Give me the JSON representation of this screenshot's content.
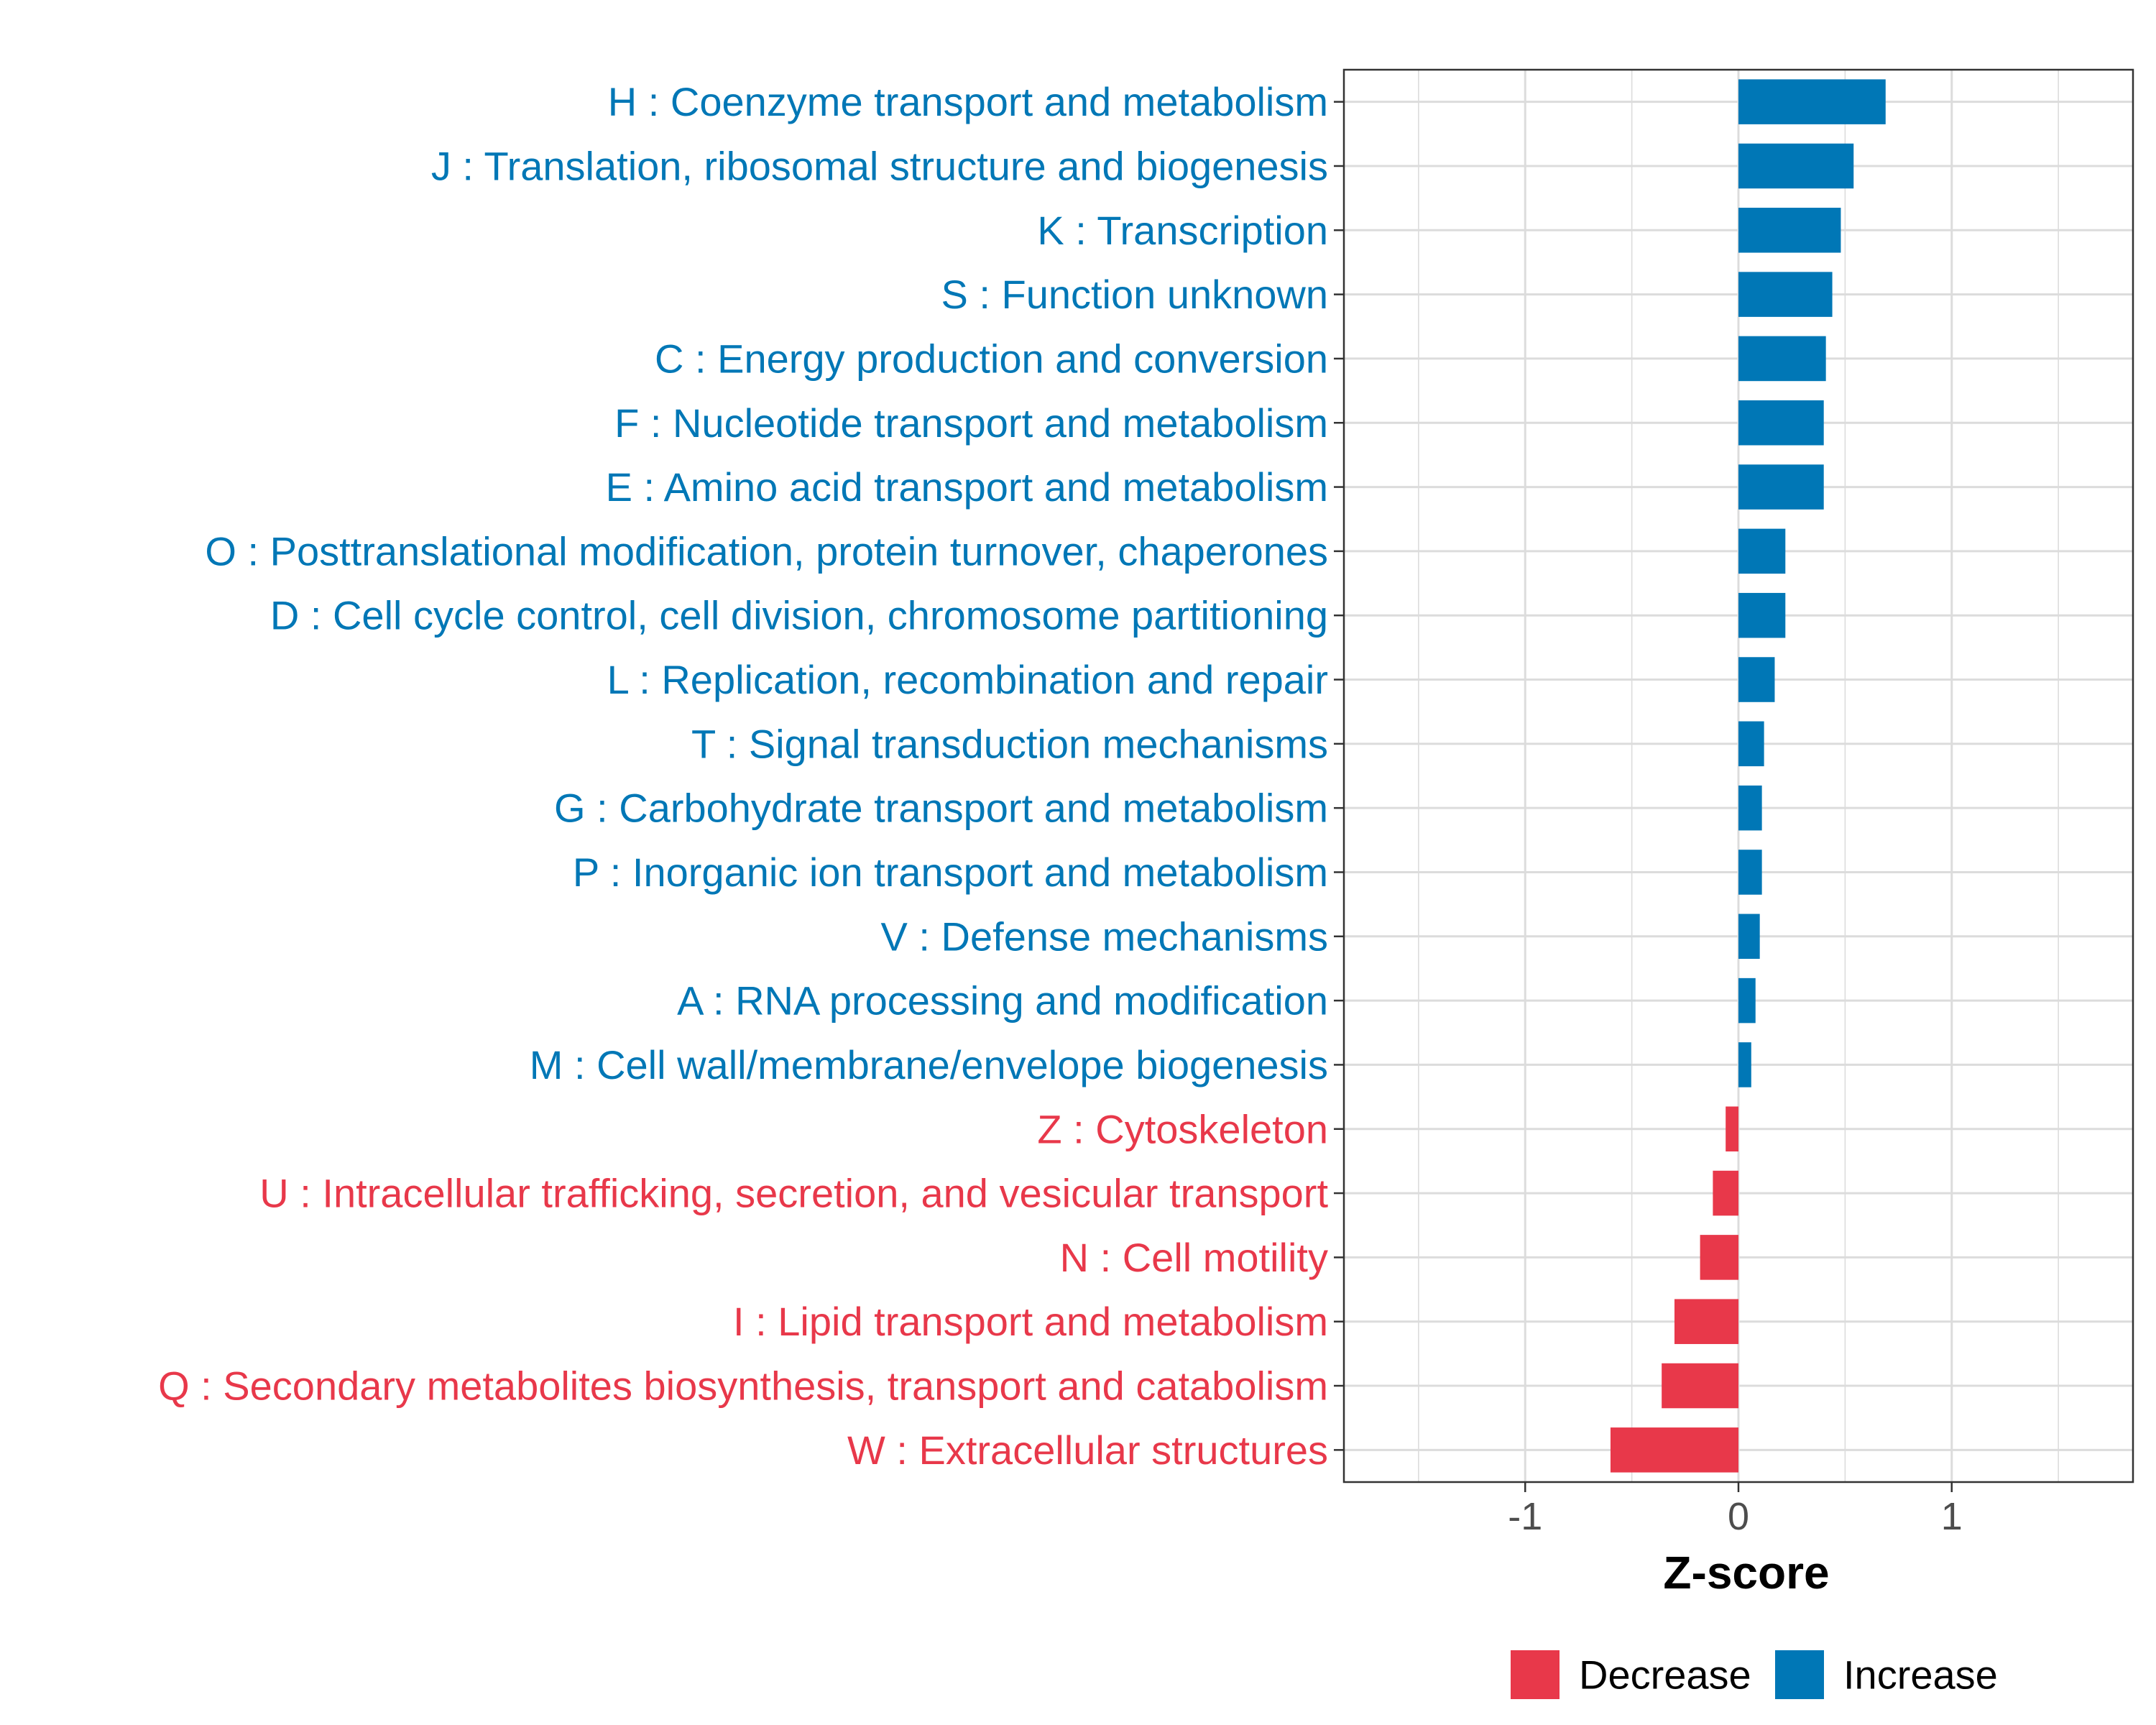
{
  "chart_data": {
    "type": "bar",
    "orientation": "horizontal",
    "title": "",
    "xlabel": "Z-score",
    "ylabel": "",
    "xlim": [
      -1.85,
      1.85
    ],
    "xticks": [
      -1,
      0,
      1
    ],
    "xtick_labels": [
      "-1",
      "0",
      "1"
    ],
    "grid": true,
    "legend_position": "bottom",
    "colors": {
      "Decrease": "#e8384a",
      "Increase": "#0077b6"
    },
    "categories": [
      "H : Coenzyme transport and metabolism",
      "J : Translation, ribosomal structure and biogenesis",
      "K : Transcription",
      "S : Function unknown",
      "C : Energy production and conversion",
      "F : Nucleotide transport and metabolism",
      "E : Amino acid transport and metabolism",
      "O : Posttranslational modification, protein turnover, chaperones",
      "D : Cell cycle control, cell division, chromosome partitioning",
      "L : Replication, recombination and repair",
      "T : Signal transduction mechanisms",
      "G : Carbohydrate transport and metabolism",
      "P : Inorganic ion transport and metabolism",
      "V : Defense mechanisms",
      "A : RNA processing and modification",
      "M : Cell wall/membrane/envelope biogenesis",
      "Z : Cytoskeleton",
      "U : Intracellular trafficking, secretion, and vesicular transport",
      "N : Cell motility",
      "I : Lipid transport and metabolism",
      "Q : Secondary metabolites biosynthesis, transport and catabolism",
      "W : Extracellular structures"
    ],
    "values": [
      0.69,
      0.54,
      0.48,
      0.44,
      0.41,
      0.4,
      0.4,
      0.22,
      0.22,
      0.17,
      0.12,
      0.11,
      0.11,
      0.1,
      0.08,
      0.06,
      -0.06,
      -0.12,
      -0.18,
      -0.3,
      -0.36,
      -0.6
    ],
    "groups": [
      "Increase",
      "Increase",
      "Increase",
      "Increase",
      "Increase",
      "Increase",
      "Increase",
      "Increase",
      "Increase",
      "Increase",
      "Increase",
      "Increase",
      "Increase",
      "Increase",
      "Increase",
      "Increase",
      "Decrease",
      "Decrease",
      "Decrease",
      "Decrease",
      "Decrease",
      "Decrease"
    ],
    "legend": [
      "Decrease",
      "Increase"
    ]
  }
}
